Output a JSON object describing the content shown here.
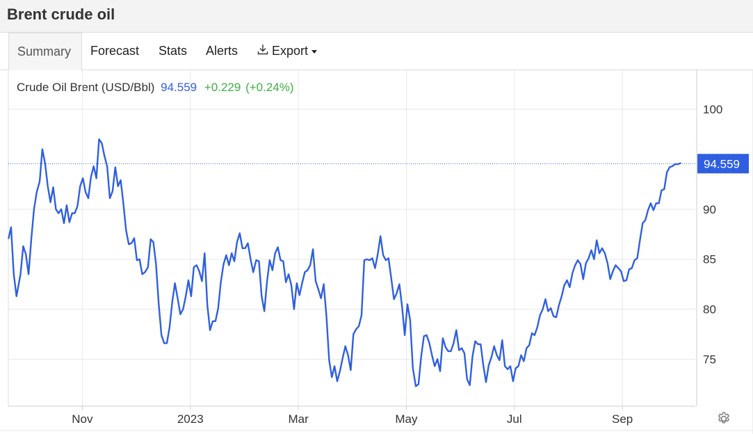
{
  "header": {
    "title": "Brent crude oil"
  },
  "tabs": [
    {
      "label": "Summary",
      "active": true
    },
    {
      "label": "Forecast"
    },
    {
      "label": "Stats"
    },
    {
      "label": "Alerts"
    },
    {
      "label": "Export",
      "icon": "download-icon",
      "dropdown": true
    }
  ],
  "legend": {
    "name": "Crude Oil Brent (USD/Bbl)",
    "last": "94.559",
    "change": "+0.229",
    "change_pct": "(+0.24%)"
  },
  "settings_icon": "gear-icon",
  "colors": {
    "line": "#2f5fe0",
    "change_positive": "#3cb043",
    "last_label_bg": "#2f5fe0",
    "grid": "#e8e8e8"
  },
  "chart_data": {
    "type": "line",
    "title": "Crude Oil Brent (USD/Bbl)",
    "xlabel": "",
    "ylabel": "",
    "ylim": [
      70.3,
      103.9
    ],
    "y_ticks": [
      75,
      80,
      85,
      90,
      100
    ],
    "x_ticks": [
      {
        "label": "Nov",
        "x": 23
      },
      {
        "label": "2023",
        "x": 63
      },
      {
        "label": "Mar",
        "x": 103
      },
      {
        "label": "May",
        "x": 143
      },
      {
        "label": "Jul",
        "x": 183
      },
      {
        "label": "Sep",
        "x": 223
      }
    ],
    "x_domain": [
      -4.4,
      250
    ],
    "grid": true,
    "last_value": 94.559,
    "last_value_label": "94.559",
    "series": [
      {
        "values": [
          [
            -4.3,
            87.1
          ],
          [
            -3.4,
            88.2
          ],
          [
            -2.4,
            83.5
          ],
          [
            -1.4,
            81.3
          ],
          [
            0.1,
            83.5
          ],
          [
            1.1,
            86.3
          ],
          [
            2.1,
            85.5
          ],
          [
            3.1,
            83.5
          ],
          [
            4.1,
            87.0
          ],
          [
            5.1,
            90.0
          ],
          [
            6.1,
            91.7
          ],
          [
            7.2,
            92.8
          ],
          [
            8.2,
            96.0
          ],
          [
            9.2,
            94.6
          ],
          [
            10.2,
            92.3
          ],
          [
            11.2,
            90.7
          ],
          [
            12.2,
            92.2
          ],
          [
            13.2,
            90.0
          ],
          [
            14.2,
            89.6
          ],
          [
            15.2,
            90.0
          ],
          [
            16.2,
            88.6
          ],
          [
            17.2,
            90.4
          ],
          [
            18.2,
            88.7
          ],
          [
            19.2,
            89.6
          ],
          [
            20.2,
            89.6
          ],
          [
            21.2,
            90.3
          ],
          [
            22.2,
            92.3
          ],
          [
            23.2,
            93.1
          ],
          [
            24.2,
            91.7
          ],
          [
            25.2,
            91.1
          ],
          [
            26.2,
            93.2
          ],
          [
            27.2,
            94.3
          ],
          [
            28.2,
            93.1
          ],
          [
            29.2,
            97.0
          ],
          [
            30.2,
            96.6
          ],
          [
            31.2,
            95.3
          ],
          [
            32.2,
            94.3
          ],
          [
            33.2,
            91.1
          ],
          [
            34.2,
            91.8
          ],
          [
            35.2,
            94.2
          ],
          [
            36.2,
            92.3
          ],
          [
            37.2,
            92.9
          ],
          [
            38.2,
            90.6
          ],
          [
            39.2,
            87.9
          ],
          [
            40.2,
            86.5
          ],
          [
            41.2,
            86.6
          ],
          [
            42.2,
            87.1
          ],
          [
            43.2,
            84.9
          ],
          [
            44.2,
            85.0
          ],
          [
            45.2,
            83.5
          ],
          [
            46.2,
            83.7
          ],
          [
            47.3,
            84.2
          ],
          [
            48.3,
            87.0
          ],
          [
            49.3,
            86.7
          ],
          [
            50.3,
            84.5
          ],
          [
            51.3,
            80.5
          ],
          [
            52.3,
            77.4
          ],
          [
            53.3,
            76.6
          ],
          [
            54.3,
            76.6
          ],
          [
            55.3,
            78.2
          ],
          [
            56.3,
            80.7
          ],
          [
            57.3,
            82.6
          ],
          [
            58.3,
            81.1
          ],
          [
            59.3,
            79.5
          ],
          [
            60.3,
            80.0
          ],
          [
            61.3,
            81.3
          ],
          [
            62.3,
            82.9
          ],
          [
            63.3,
            81.3
          ],
          [
            64.3,
            84.2
          ],
          [
            65.3,
            84.4
          ],
          [
            66.3,
            83.8
          ],
          [
            67.3,
            82.8
          ],
          [
            68.3,
            85.6
          ],
          [
            69.3,
            80.4
          ],
          [
            70.3,
            77.9
          ],
          [
            71.3,
            78.8
          ],
          [
            72.3,
            78.8
          ],
          [
            73.3,
            80.1
          ],
          [
            74.3,
            82.7
          ],
          [
            75.3,
            84.5
          ],
          [
            76.3,
            85.4
          ],
          [
            77.3,
            84.4
          ],
          [
            78.3,
            85.6
          ],
          [
            79.3,
            84.8
          ],
          [
            80.3,
            86.7
          ],
          [
            81.3,
            87.6
          ],
          [
            82.3,
            86.1
          ],
          [
            83.3,
            86.1
          ],
          [
            84.3,
            86.6
          ],
          [
            85.3,
            85.0
          ],
          [
            86.3,
            83.7
          ],
          [
            87.4,
            84.9
          ],
          [
            88.4,
            84.8
          ],
          [
            89.4,
            81.3
          ],
          [
            90.4,
            79.8
          ],
          [
            91.4,
            82.8
          ],
          [
            92.4,
            84.9
          ],
          [
            93.4,
            83.9
          ],
          [
            94.4,
            85.6
          ],
          [
            95.4,
            86.2
          ],
          [
            96.4,
            84.9
          ],
          [
            97.4,
            84.8
          ],
          [
            98.4,
            82.7
          ],
          [
            99.4,
            83.5
          ],
          [
            100.4,
            82.4
          ],
          [
            101.4,
            80.0
          ],
          [
            102.4,
            82.6
          ],
          [
            103.4,
            81.4
          ],
          [
            104.4,
            82.6
          ],
          [
            105.4,
            83.7
          ],
          [
            106.4,
            83.9
          ],
          [
            107.4,
            84.4
          ],
          [
            108.4,
            86.0
          ],
          [
            109.4,
            82.8
          ],
          [
            110.4,
            82.0
          ],
          [
            111.4,
            81.1
          ],
          [
            112.4,
            82.5
          ],
          [
            113.4,
            79.3
          ],
          [
            114.4,
            74.9
          ],
          [
            115.4,
            73.2
          ],
          [
            116.4,
            74.3
          ],
          [
            117.4,
            72.8
          ],
          [
            118.4,
            73.8
          ],
          [
            119.4,
            75.1
          ],
          [
            120.4,
            76.3
          ],
          [
            121.4,
            75.4
          ],
          [
            122.4,
            73.9
          ],
          [
            123.4,
            77.5
          ],
          [
            124.4,
            78.0
          ],
          [
            125.4,
            78.3
          ],
          [
            126.4,
            79.4
          ],
          [
            127.4,
            84.9
          ],
          [
            128.4,
            85.0
          ],
          [
            129.4,
            84.9
          ],
          [
            130.4,
            85.1
          ],
          [
            131.4,
            84.1
          ],
          [
            132.4,
            85.5
          ],
          [
            133.4,
            87.3
          ],
          [
            134.4,
            85.4
          ],
          [
            135.4,
            84.9
          ],
          [
            136.4,
            85.1
          ],
          [
            137.4,
            83.1
          ],
          [
            138.4,
            81.0
          ],
          [
            139.4,
            81.6
          ],
          [
            140.4,
            82.5
          ],
          [
            141.4,
            80.3
          ],
          [
            142.4,
            77.4
          ],
          [
            143.4,
            80.5
          ],
          [
            144.4,
            78.9
          ],
          [
            145.4,
            74.1
          ],
          [
            146.5,
            72.3
          ],
          [
            147.5,
            72.5
          ],
          [
            148.5,
            75.3
          ],
          [
            149.5,
            77.3
          ],
          [
            150.5,
            77.4
          ],
          [
            151.5,
            76.6
          ],
          [
            152.5,
            75.4
          ],
          [
            153.5,
            74.3
          ],
          [
            154.5,
            75.0
          ],
          [
            155.5,
            73.8
          ],
          [
            156.5,
            77.1
          ],
          [
            157.5,
            76.2
          ],
          [
            158.5,
            75.8
          ],
          [
            159.5,
            75.8
          ],
          [
            160.5,
            76.6
          ],
          [
            161.5,
            77.9
          ],
          [
            162.5,
            75.9
          ],
          [
            163.5,
            76.1
          ],
          [
            164.5,
            75.6
          ],
          [
            165.5,
            73.0
          ],
          [
            166.5,
            72.4
          ],
          [
            167.5,
            75.3
          ],
          [
            168.5,
            76.8
          ],
          [
            169.5,
            76.5
          ],
          [
            170.5,
            76.5
          ],
          [
            171.5,
            74.4
          ],
          [
            172.5,
            72.7
          ],
          [
            173.5,
            74.4
          ],
          [
            174.5,
            75.2
          ],
          [
            175.5,
            76.3
          ],
          [
            176.5,
            75.4
          ],
          [
            177.5,
            74.9
          ],
          [
            178.5,
            76.9
          ],
          [
            179.5,
            74.3
          ],
          [
            180.5,
            74.0
          ],
          [
            181.5,
            74.3
          ],
          [
            182.5,
            72.8
          ],
          [
            183.5,
            74.1
          ],
          [
            184.5,
            74.3
          ],
          [
            185.5,
            75.4
          ],
          [
            186.5,
            74.8
          ],
          [
            187.5,
            76.1
          ],
          [
            188.5,
            76.4
          ],
          [
            189.5,
            77.6
          ],
          [
            190.5,
            77.4
          ],
          [
            191.5,
            78.2
          ],
          [
            192.5,
            79.4
          ],
          [
            193.5,
            80.0
          ],
          [
            194.5,
            81.0
          ],
          [
            195.5,
            79.8
          ],
          [
            196.5,
            80.1
          ],
          [
            197.5,
            79.3
          ],
          [
            198.5,
            79.2
          ],
          [
            199.5,
            80.4
          ],
          [
            200.5,
            81.3
          ],
          [
            201.5,
            82.4
          ],
          [
            202.5,
            82.9
          ],
          [
            203.5,
            82.2
          ],
          [
            204.5,
            83.6
          ],
          [
            205.5,
            84.4
          ],
          [
            206.5,
            84.9
          ],
          [
            207.5,
            84.5
          ],
          [
            208.5,
            83.0
          ],
          [
            209.5,
            84.6
          ],
          [
            210.5,
            85.1
          ],
          [
            211.5,
            85.9
          ],
          [
            212.5,
            85.0
          ],
          [
            213.5,
            86.9
          ],
          [
            214.5,
            85.6
          ],
          [
            215.5,
            86.1
          ],
          [
            216.5,
            85.6
          ],
          [
            217.5,
            84.6
          ],
          [
            218.5,
            83.0
          ],
          [
            219.5,
            83.8
          ],
          [
            220.5,
            84.4
          ],
          [
            221.5,
            84.1
          ],
          [
            222.5,
            83.8
          ],
          [
            223.5,
            82.8
          ],
          [
            224.5,
            82.9
          ],
          [
            225.5,
            84.0
          ],
          [
            226.5,
            84.1
          ],
          [
            227.5,
            84.9
          ],
          [
            228.5,
            85.1
          ],
          [
            229.5,
            86.9
          ],
          [
            230.5,
            88.6
          ],
          [
            231.5,
            88.9
          ],
          [
            232.5,
            89.9
          ],
          [
            233.5,
            90.6
          ],
          [
            234.5,
            89.9
          ],
          [
            235.5,
            90.6
          ],
          [
            236.5,
            90.6
          ],
          [
            237.5,
            91.9
          ],
          [
            238.5,
            92.0
          ],
          [
            239.5,
            93.7
          ],
          [
            240.5,
            94.2
          ],
          [
            241.5,
            94.3
          ],
          [
            242.5,
            94.5
          ],
          [
            243.5,
            94.5
          ],
          [
            244.5,
            94.6
          ]
        ]
      }
    ]
  }
}
